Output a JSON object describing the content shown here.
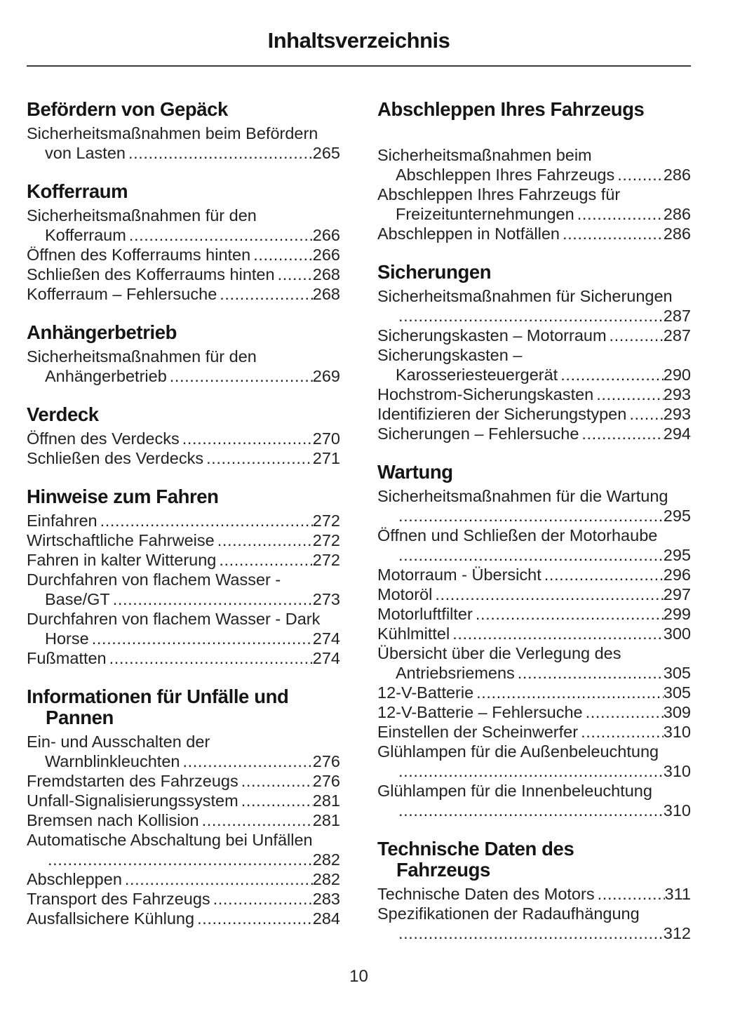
{
  "page": {
    "title": "Inhaltsverzeichnis",
    "number": "10"
  },
  "colors": {
    "background": "#ffffff",
    "text": "#1b1b1b",
    "rule": "#3a3a3a"
  },
  "toc": {
    "columns": [
      {
        "sections": [
          {
            "title_lines": [
              "Befördern von Gepäck"
            ],
            "entries": [
              {
                "lines": [
                  "Sicherheitsmaßnahmen beim Befördern",
                  "von Lasten"
                ],
                "page": "265"
              }
            ]
          },
          {
            "title_lines": [
              "Kofferraum"
            ],
            "entries": [
              {
                "lines": [
                  "Sicherheitsmaßnahmen für den",
                  "Kofferraum"
                ],
                "page": "266"
              },
              {
                "lines": [
                  "Öffnen des Kofferraums hinten"
                ],
                "page": "266"
              },
              {
                "lines": [
                  "Schließen des Kofferraums hinten"
                ],
                "page": "268"
              },
              {
                "lines": [
                  "Kofferraum – Fehlersuche"
                ],
                "page": "268"
              }
            ]
          },
          {
            "title_lines": [
              "Anhängerbetrieb"
            ],
            "entries": [
              {
                "lines": [
                  "Sicherheitsmaßnahmen für den",
                  "Anhängerbetrieb"
                ],
                "page": "269"
              }
            ]
          },
          {
            "title_lines": [
              "Verdeck"
            ],
            "entries": [
              {
                "lines": [
                  "Öffnen des Verdecks"
                ],
                "page": "270"
              },
              {
                "lines": [
                  "Schließen des Verdecks"
                ],
                "page": "271"
              }
            ]
          },
          {
            "title_lines": [
              "Hinweise zum Fahren"
            ],
            "entries": [
              {
                "lines": [
                  "Einfahren"
                ],
                "page": "272"
              },
              {
                "lines": [
                  "Wirtschaftliche Fahrweise"
                ],
                "page": "272"
              },
              {
                "lines": [
                  "Fahren in kalter Witterung"
                ],
                "page": "272"
              },
              {
                "lines": [
                  "Durchfahren von flachem Wasser -",
                  "Base/GT"
                ],
                "page": "273"
              },
              {
                "lines": [
                  "Durchfahren von flachem Wasser - Dark",
                  "Horse"
                ],
                "page": "274"
              },
              {
                "lines": [
                  "Fußmatten"
                ],
                "page": "274"
              }
            ]
          },
          {
            "title_lines": [
              "Informationen für Unfälle und",
              "Pannen"
            ],
            "entries": [
              {
                "lines": [
                  "Ein- und Ausschalten der",
                  "Warnblinkleuchten"
                ],
                "page": "276"
              },
              {
                "lines": [
                  "Fremdstarten des Fahrzeugs"
                ],
                "page": "276"
              },
              {
                "lines": [
                  "Unfall-Signalisierungssystem"
                ],
                "page": "281"
              },
              {
                "lines": [
                  "Bremsen nach Kollision"
                ],
                "page": "281"
              },
              {
                "lines": [
                  "Automatische Abschaltung bei Unfällen",
                  ""
                ],
                "page": "282"
              },
              {
                "lines": [
                  "Abschleppen"
                ],
                "page": "282"
              },
              {
                "lines": [
                  "Transport des Fahrzeugs"
                ],
                "page": "283"
              },
              {
                "lines": [
                  "Ausfallsichere Kühlung"
                ],
                "page": "284"
              }
            ]
          }
        ]
      },
      {
        "sections": [
          {
            "title_lines": [
              "Abschleppen Ihres Fahrzeugs"
            ],
            "gap_after_title": true,
            "entries": [
              {
                "lines": [
                  "Sicherheitsmaßnahmen beim",
                  "Abschleppen Ihres Fahrzeugs"
                ],
                "page": "286"
              },
              {
                "lines": [
                  "Abschleppen Ihres Fahrzeugs für",
                  "Freizeitunternehmungen"
                ],
                "page": "286"
              },
              {
                "lines": [
                  "Abschleppen in Notfällen"
                ],
                "page": "286"
              }
            ]
          },
          {
            "title_lines": [
              "Sicherungen"
            ],
            "entries": [
              {
                "lines": [
                  "Sicherheitsmaßnahmen für Sicherungen",
                  ""
                ],
                "page": "287"
              },
              {
                "lines": [
                  "Sicherungskasten – Motorraum"
                ],
                "page": "287"
              },
              {
                "lines": [
                  "Sicherungskasten –",
                  "Karosseriesteuergerät"
                ],
                "page": "290"
              },
              {
                "lines": [
                  "Hochstrom-Sicherungskasten"
                ],
                "page": "293"
              },
              {
                "lines": [
                  "Identifizieren der Sicherungstypen"
                ],
                "page": "293"
              },
              {
                "lines": [
                  "Sicherungen – Fehlersuche"
                ],
                "page": "294"
              }
            ]
          },
          {
            "title_lines": [
              "Wartung"
            ],
            "entries": [
              {
                "lines": [
                  "Sicherheitsmaßnahmen für die Wartung",
                  ""
                ],
                "page": "295"
              },
              {
                "lines": [
                  "Öffnen und Schließen der Motorhaube",
                  ""
                ],
                "page": "295"
              },
              {
                "lines": [
                  "Motorraum - Übersicht"
                ],
                "page": "296"
              },
              {
                "lines": [
                  "Motoröl"
                ],
                "page": "297"
              },
              {
                "lines": [
                  "Motorluftfilter"
                ],
                "page": "299"
              },
              {
                "lines": [
                  "Kühlmittel"
                ],
                "page": "300"
              },
              {
                "lines": [
                  "Übersicht über die Verlegung des",
                  "Antriebsriemens"
                ],
                "page": "305"
              },
              {
                "lines": [
                  "12-V-Batterie"
                ],
                "page": "305"
              },
              {
                "lines": [
                  "12-V-Batterie – Fehlersuche"
                ],
                "page": "309"
              },
              {
                "lines": [
                  "Einstellen der Scheinwerfer"
                ],
                "page": "310"
              },
              {
                "lines": [
                  "Glühlampen für die Außenbeleuchtung",
                  ""
                ],
                "page": "310"
              },
              {
                "lines": [
                  "Glühlampen für die Innenbeleuchtung",
                  ""
                ],
                "page": "310"
              }
            ]
          },
          {
            "title_lines": [
              "Technische Daten des",
              "Fahrzeugs"
            ],
            "entries": [
              {
                "lines": [
                  "Technische Daten des Motors"
                ],
                "page": "311"
              },
              {
                "lines": [
                  "Spezifikationen der Radaufhängung",
                  ""
                ],
                "page": "312"
              }
            ]
          }
        ]
      }
    ]
  }
}
